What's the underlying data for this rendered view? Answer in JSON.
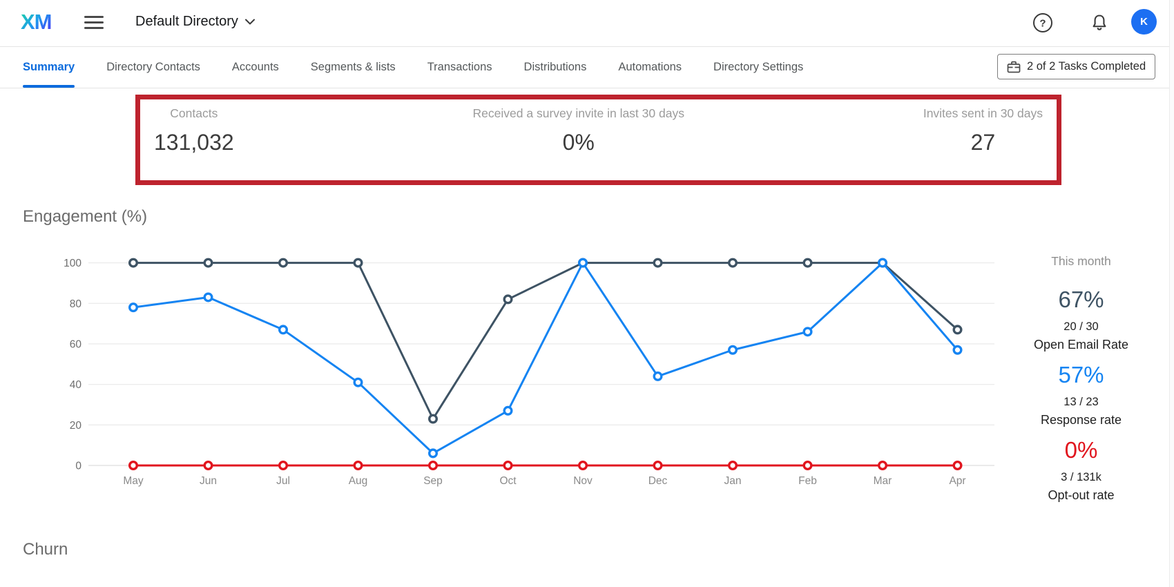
{
  "header": {
    "logo_text": "XM",
    "directory_name": "Default Directory",
    "avatar_initial": "K"
  },
  "nav": {
    "tabs": [
      "Summary",
      "Directory Contacts",
      "Accounts",
      "Segments & lists",
      "Transactions",
      "Distributions",
      "Automations",
      "Directory Settings"
    ],
    "active_tab": "Summary",
    "tasks_button_label": "2 of 2 Tasks Completed"
  },
  "stats": [
    {
      "label": "Contacts",
      "value": "131,032"
    },
    {
      "label": "Received a survey invite in last 30 days",
      "value": "0%"
    },
    {
      "label": "Invites sent in 30 days",
      "value": "27"
    }
  ],
  "engagement_section": {
    "title": "Engagement (%)"
  },
  "churn_section": {
    "title": "Churn"
  },
  "chart_data": {
    "type": "line",
    "title": "Engagement (%)",
    "categories": [
      "May",
      "Jun",
      "Jul",
      "Aug",
      "Sep",
      "Oct",
      "Nov",
      "Dec",
      "Jan",
      "Feb",
      "Mar",
      "Apr"
    ],
    "series": [
      {
        "name": "Open Email Rate",
        "color": "#3e5364",
        "values": [
          100,
          100,
          100,
          100,
          23,
          82,
          100,
          100,
          100,
          100,
          100,
          67
        ]
      },
      {
        "name": "Response rate",
        "color": "#1584f2",
        "values": [
          78,
          83,
          67,
          41,
          6,
          27,
          100,
          44,
          57,
          66,
          100,
          57
        ]
      },
      {
        "name": "Opt-out rate",
        "color": "#e1151e",
        "values": [
          0,
          0,
          0,
          0,
          0,
          0,
          0,
          0,
          0,
          0,
          0,
          0
        ]
      }
    ],
    "ylim": [
      0,
      100
    ],
    "yticks": [
      0,
      20,
      40,
      60,
      80,
      100
    ],
    "grid": true,
    "legend_position": "none"
  },
  "side_panel": {
    "title": "This month",
    "metrics": [
      {
        "value": "67%",
        "fraction": "20 / 30",
        "label": "Open Email Rate",
        "color": "#3e5364"
      },
      {
        "value": "57%",
        "fraction": "13 / 23",
        "label": "Response rate",
        "color": "#1584f2"
      },
      {
        "value": "0%",
        "fraction": "3 / 131k",
        "label": "Opt-out rate",
        "color": "#e1151e"
      }
    ]
  },
  "colors": {
    "accent_blue": "#0b6bdd",
    "highlight_box_red": "#be232e",
    "avatar_blue": "#1c6ff2"
  }
}
